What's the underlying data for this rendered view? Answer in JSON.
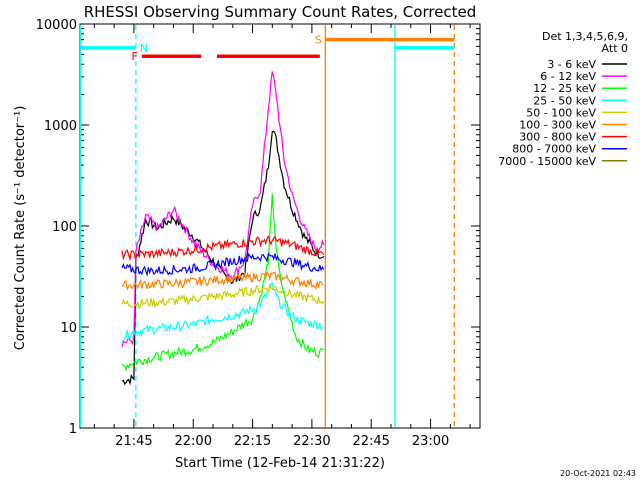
{
  "chart_data": {
    "type": "line",
    "title": "RHESSI Observing Summary Count Rates, Corrected",
    "xlabel": "Start Time (12-Feb-14 21:31:22)",
    "ylabel": "Corrected Count Rate (s⁻¹ detector⁻¹)",
    "footer": "20-Oct-2021 02:43",
    "legend_header": [
      "Det 1,3,4,5,6,9,",
      "Att 0"
    ],
    "legend_placement": "right",
    "x_tick_labels": [
      "21:45",
      "22:00",
      "22:15",
      "22:30",
      "22:45",
      "23:00"
    ],
    "x_ticks_min": [
      45,
      60,
      75,
      90,
      105,
      120
    ],
    "xlim_min": [
      31.37,
      132.5
    ],
    "y_scale": "log",
    "ylim": [
      1,
      10000
    ],
    "y_ticks": [
      1,
      10,
      100,
      1000,
      10000
    ],
    "y_tick_labels": [
      "1",
      "10",
      "100",
      "1000",
      "10000"
    ],
    "series": [
      {
        "name": "3 - 6 keV",
        "color": "#000000",
        "x": [
          42,
          45,
          45.5,
          48,
          51,
          55,
          60,
          65,
          67,
          70,
          73,
          75,
          77,
          79,
          80,
          81,
          82,
          83,
          85,
          88,
          91,
          93
        ],
        "y": [
          2.9,
          3.1,
          45,
          115,
          95,
          120,
          80,
          45,
          35,
          28,
          35,
          120,
          150,
          400,
          950,
          700,
          420,
          260,
          150,
          80,
          55,
          50
        ]
      },
      {
        "name": "6 - 12 keV",
        "color": "#ff00ff",
        "x": [
          42,
          45,
          45.5,
          48,
          51,
          55,
          60,
          65,
          67,
          70,
          73,
          75,
          77,
          79,
          80,
          81,
          82,
          83,
          85,
          88,
          91,
          93
        ],
        "y": [
          7,
          7.5,
          55,
          125,
          95,
          145,
          70,
          42,
          38,
          32,
          45,
          160,
          230,
          1500,
          3300,
          2000,
          900,
          450,
          200,
          95,
          60,
          65
        ]
      },
      {
        "name": "12 - 25 keV",
        "color": "#00ff00",
        "x": [
          42,
          45,
          50,
          55,
          60,
          65,
          70,
          73,
          75,
          77,
          79,
          80,
          81,
          82,
          84,
          86,
          89,
          92,
          93
        ],
        "y": [
          4,
          4.5,
          5,
          5.5,
          6,
          7,
          9,
          11,
          12,
          20,
          45,
          190,
          60,
          30,
          15,
          8,
          6,
          5.5,
          6
        ]
      },
      {
        "name": "25 - 50 keV",
        "color": "#00ffff",
        "x": [
          42,
          45,
          50,
          55,
          60,
          65,
          70,
          73,
          75,
          77,
          79,
          80,
          81,
          82,
          84,
          86,
          89,
          92,
          93
        ],
        "y": [
          8,
          9,
          9.5,
          10,
          10.5,
          12,
          13,
          14,
          15,
          17,
          22,
          26,
          20,
          17,
          14,
          12,
          11,
          10.5,
          10
        ]
      },
      {
        "name": "50 - 100 keV",
        "color": "#cccc00",
        "x": [
          42,
          45,
          50,
          55,
          60,
          65,
          70,
          75,
          78,
          80,
          82,
          85,
          90,
          93
        ],
        "y": [
          17,
          17,
          17.5,
          18,
          19,
          20,
          21,
          23,
          24,
          25,
          23,
          21,
          19,
          18
        ]
      },
      {
        "name": "100 - 300 keV",
        "color": "#ff8000",
        "x": [
          42,
          45,
          50,
          55,
          60,
          65,
          70,
          75,
          78,
          80,
          82,
          85,
          90,
          93
        ],
        "y": [
          26,
          26,
          26.5,
          27,
          28,
          29,
          30,
          31,
          32,
          32,
          31,
          29,
          27,
          26
        ]
      },
      {
        "name": "300 - 800 keV",
        "color": "#ff0000",
        "x": [
          42,
          45,
          50,
          55,
          60,
          65,
          70,
          75,
          78,
          80,
          82,
          85,
          90,
          93
        ],
        "y": [
          52,
          52,
          53,
          55,
          58,
          62,
          66,
          70,
          72,
          72,
          70,
          65,
          56,
          52
        ]
      },
      {
        "name": "800 - 7000 keV",
        "color": "#0000ff",
        "x": [
          42,
          45,
          50,
          55,
          60,
          65,
          70,
          75,
          78,
          80,
          82,
          85,
          90,
          93
        ],
        "y": [
          38,
          37,
          36,
          37,
          38,
          41,
          45,
          49,
          50,
          49,
          47,
          44,
          39,
          37
        ]
      },
      {
        "name": "7000 - 15000 keV",
        "color": "#808000",
        "x": [],
        "y": []
      }
    ],
    "segments": [
      {
        "label": "N",
        "color": "#00ffff",
        "x": [
          31.37,
          45.5
        ],
        "y": 5800
      },
      {
        "label": "",
        "color": "#00ffff",
        "x": [
          111,
          126
        ],
        "y": 5800
      },
      {
        "label": "F",
        "color": "#ff0000",
        "x": [
          47,
          62
        ],
        "y": 4800
      },
      {
        "label": "",
        "color": "#ff0000",
        "x": [
          66,
          92
        ],
        "y": 4800
      },
      {
        "label": "S",
        "color": "#ff8000",
        "x": [
          93.5,
          126
        ],
        "y": 7000
      }
    ],
    "verticals": [
      {
        "color": "#00ffff",
        "x": 31.5,
        "style": "solid"
      },
      {
        "color": "#00ffff",
        "x": 45.5,
        "style": "dashed"
      },
      {
        "color": "#ff8000",
        "x": 93.4,
        "style": "solid"
      },
      {
        "color": "#00ffff",
        "x": 111,
        "style": "solid"
      },
      {
        "color": "#ff8000",
        "x": 126,
        "style": "dashed"
      }
    ]
  }
}
